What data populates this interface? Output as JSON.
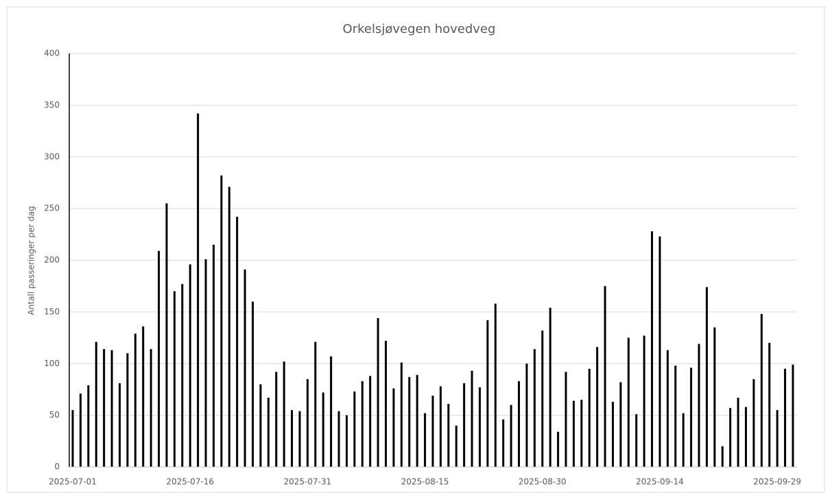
{
  "chart_data": {
    "type": "bar",
    "title": "Orkelsjøvegen hovedveg",
    "y_label": "Antall passeringer per dag",
    "categories": [
      "2025-07-01",
      null,
      null,
      null,
      null,
      null,
      null,
      null,
      null,
      null,
      null,
      null,
      null,
      null,
      null,
      "2025-07-16",
      null,
      null,
      null,
      null,
      null,
      null,
      null,
      null,
      null,
      null,
      null,
      null,
      null,
      null,
      "2025-07-31",
      null,
      null,
      null,
      null,
      null,
      null,
      null,
      null,
      null,
      null,
      null,
      null,
      null,
      null,
      "2025-08-15",
      null,
      null,
      null,
      null,
      null,
      null,
      null,
      null,
      null,
      null,
      null,
      null,
      null,
      null,
      "2025-08-30",
      null,
      null,
      null,
      null,
      null,
      null,
      null,
      null,
      null,
      null,
      null,
      null,
      null,
      null,
      "2025-09-14",
      null,
      null,
      null,
      null,
      null,
      null,
      null,
      null,
      null,
      null,
      null,
      null,
      null,
      null,
      "2025-09-29",
      null,
      null
    ],
    "values": [
      55,
      71,
      79,
      121,
      114,
      113,
      81,
      110,
      129,
      136,
      114,
      209,
      255,
      170,
      177,
      196,
      342,
      201,
      215,
      282,
      271,
      242,
      191,
      160,
      80,
      67,
      92,
      102,
      55,
      54,
      85,
      121,
      72,
      107,
      54,
      50,
      73,
      83,
      88,
      144,
      122,
      76,
      101,
      87,
      89,
      52,
      69,
      78,
      61,
      40,
      81,
      93,
      77,
      142,
      158,
      46,
      60,
      83,
      100,
      114,
      132,
      154,
      34,
      92,
      64,
      65,
      95,
      116,
      175,
      63,
      82,
      125,
      51,
      127,
      228,
      223,
      113,
      98,
      52,
      96,
      119,
      174,
      135,
      20,
      57,
      67,
      58,
      85,
      148,
      120,
      55,
      95,
      99
    ],
    "color": "#000000",
    "ylim": [
      0,
      400
    ],
    "yticks": [
      0,
      50,
      100,
      150,
      200,
      250,
      300,
      350,
      400
    ],
    "grid": true
  }
}
